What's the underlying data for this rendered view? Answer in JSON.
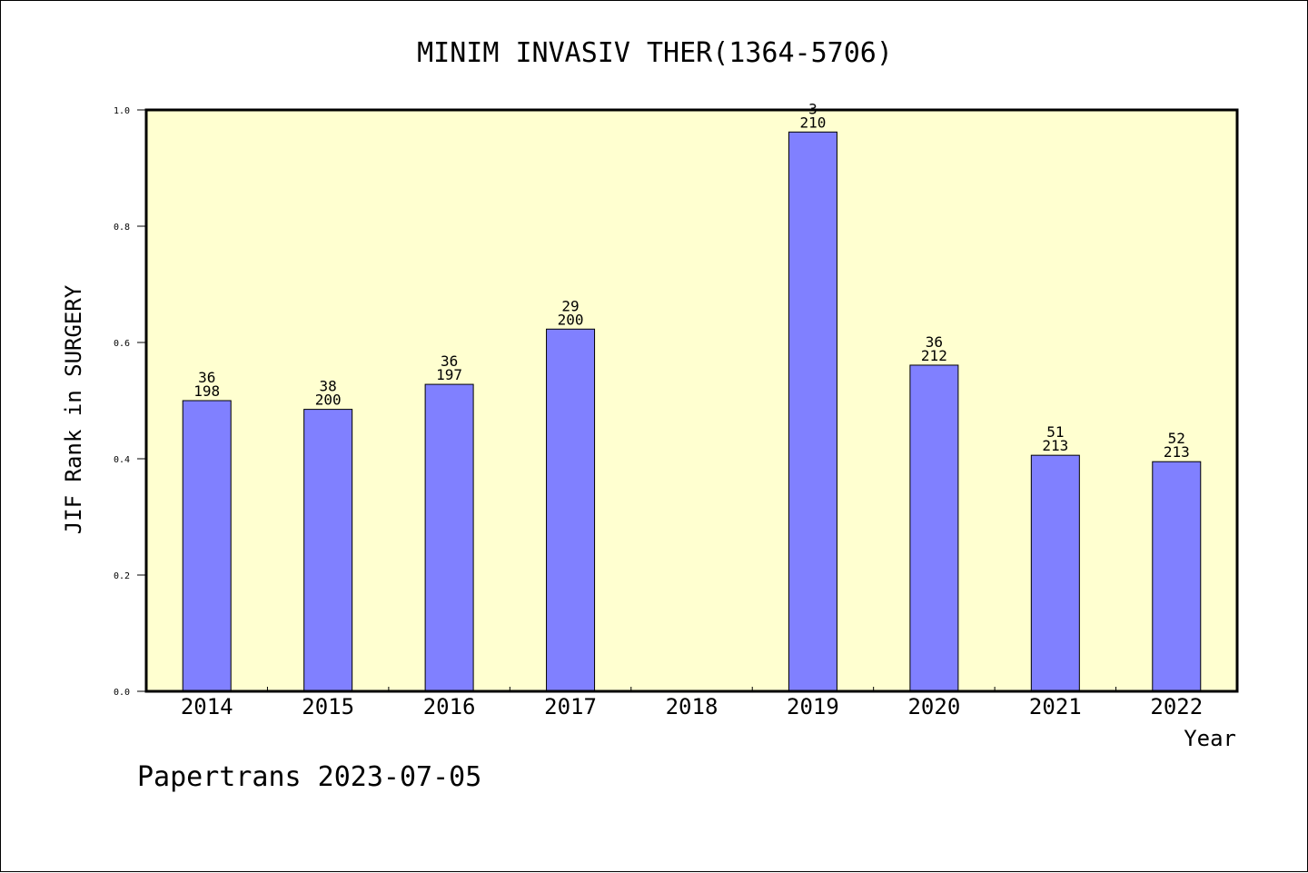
{
  "chart_data": {
    "type": "bar",
    "title": "MINIM INVASIV THER(1364-5706)",
    "xlabel": "Year",
    "ylabel": "JIF Rank in SURGERY",
    "footer": "Papertrans 2023-07-05",
    "ylim": [
      0,
      1.0
    ],
    "yticks": [
      "0.0",
      "0.2",
      "0.4",
      "0.6",
      "0.8",
      "1.0"
    ],
    "ytick_values": [
      0,
      0.2,
      0.4,
      0.6,
      0.8,
      1.0
    ],
    "categories": [
      "2014",
      "2015",
      "2016",
      "2017",
      "2018",
      "2019",
      "2020",
      "2021",
      "2022"
    ],
    "values": [
      0.5,
      0.485,
      0.528,
      0.623,
      null,
      0.962,
      0.561,
      0.406,
      0.395
    ],
    "ranks": [
      "36",
      "38",
      "36",
      "29",
      "",
      "3",
      "36",
      "51",
      "52"
    ],
    "totals": [
      "198",
      "200",
      "197",
      "200",
      "",
      "210",
      "212",
      "213",
      "213"
    ],
    "grid": false,
    "colors": {
      "bar": "#8080ff",
      "plot_background": "#ffffd0",
      "axis": "#000000"
    }
  }
}
